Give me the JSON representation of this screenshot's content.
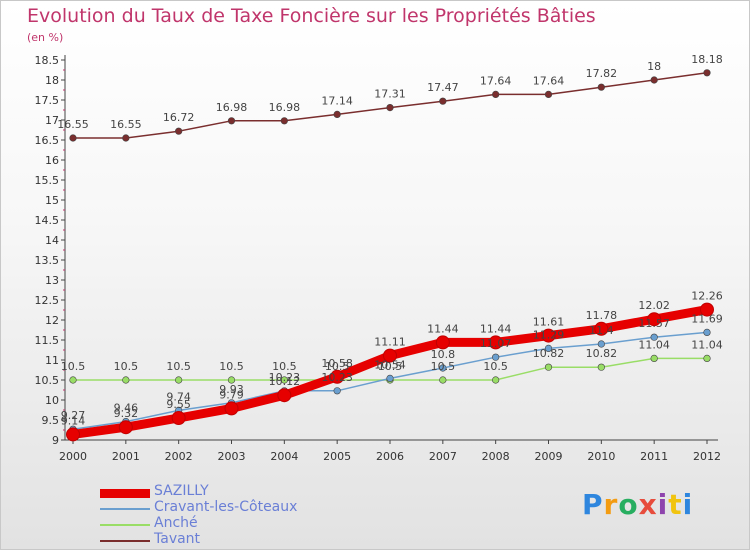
{
  "chart_data": {
    "type": "line",
    "title": "Evolution du Taux de Taxe Foncière sur les Propriétés Bâties",
    "ylabel": "(en %)",
    "xlabel": "",
    "x": [
      "2000",
      "2001",
      "2002",
      "2003",
      "2004",
      "2005",
      "2006",
      "2007",
      "2008",
      "2009",
      "2010",
      "2011",
      "2012"
    ],
    "ylim": [
      9,
      18.5
    ],
    "yticks": [
      "9",
      "9.5",
      "10",
      "10.5",
      "11",
      "11.5",
      "12",
      "12.5",
      "13",
      "13.5",
      "14",
      "14.5",
      "15",
      "15.5",
      "16",
      "16.5",
      "17",
      "17.5",
      "18",
      "18.5"
    ],
    "series": [
      {
        "name": "SAZILLY",
        "color": "#e60000",
        "values": [
          9.14,
          9.32,
          9.55,
          9.79,
          10.12,
          10.58,
          11.11,
          11.44,
          11.44,
          11.61,
          11.78,
          12.02,
          12.26
        ],
        "labels": [
          "9.14",
          "9.32",
          "9.55",
          "9.79",
          "10.12",
          "10.58",
          "11.11",
          "11.44",
          "11.44",
          "11.61",
          "11.78",
          "12.02",
          "12.26"
        ]
      },
      {
        "name": "Cravant-les-Côteaux",
        "color": "#6a9fcf",
        "values": [
          9.27,
          9.46,
          9.74,
          9.93,
          10.23,
          10.23,
          10.54,
          10.8,
          11.07,
          11.29,
          11.4,
          11.57,
          11.69
        ],
        "labels": [
          "9.27",
          "9.46",
          "9.74",
          "9.93",
          "10.23",
          "10.23",
          "10.54",
          "10.8",
          "11.07",
          "11.29",
          "11.4",
          "11.57",
          "11.69"
        ]
      },
      {
        "name": "Anché",
        "color": "#99dd66",
        "values": [
          10.5,
          10.5,
          10.5,
          10.5,
          10.5,
          10.5,
          10.5,
          10.5,
          10.5,
          10.82,
          10.82,
          11.04,
          11.04
        ],
        "labels": [
          "10.5",
          "10.5",
          "10.5",
          "10.5",
          "10.5",
          "10.5",
          "10.5",
          "10.5",
          "10.5",
          "10.82",
          "10.82",
          "11.04",
          "11.04"
        ]
      },
      {
        "name": "Tavant",
        "color": "#7a2e2e",
        "values": [
          16.55,
          16.55,
          16.72,
          16.98,
          16.98,
          17.14,
          17.31,
          17.47,
          17.64,
          17.64,
          17.82,
          18.0,
          18.18
        ],
        "labels": [
          "16.55",
          "16.55",
          "16.72",
          "16.98",
          "16.98",
          "17.14",
          "17.31",
          "17.47",
          "17.64",
          "17.64",
          "17.82",
          "18",
          "18.18"
        ]
      }
    ],
    "legend_position": "bottom-left",
    "grid": false
  },
  "logo": {
    "letters": [
      "P",
      "r",
      "o",
      "x",
      "i",
      "t",
      "i"
    ],
    "colors": [
      "#2e86de",
      "#f39c12",
      "#27ae60",
      "#e74c3c",
      "#8e44ad",
      "#f1c40f",
      "#2e86de"
    ]
  }
}
